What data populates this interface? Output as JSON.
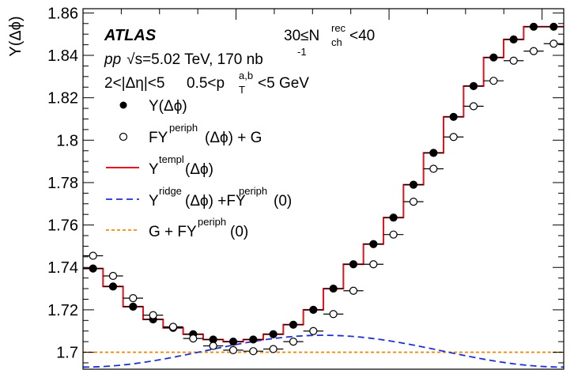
{
  "chart_data": {
    "type": "line",
    "ylabel": "Y(Δϕ)",
    "xlabel": "",
    "ylim": [
      1.692,
      1.862
    ],
    "xlim": [
      0,
      3.1416
    ],
    "yticks": [
      "1.7",
      "1.72",
      "1.74",
      "1.76",
      "1.78",
      "1.8",
      "1.82",
      "1.84",
      "1.86"
    ],
    "grid": false,
    "legend_position": "top-left",
    "annotations": {
      "experiment": "ATLAS",
      "multiplicity": {
        "lead": "30≤N",
        "sup": "rec",
        "sub": "ch",
        "tail": "<40"
      },
      "system": {
        "pp": "pp",
        "sqrt_s": "√s",
        "energy": "=5.02 TeV, 170 nb",
        "exp": "-1"
      },
      "cuts": {
        "eta": "2<|Δη|<5",
        "pt_lead": "0.5<p",
        "pt_sup": "a,b",
        "pt_sub": "T",
        "pt_tail": "<5 GeV"
      }
    },
    "legend": {
      "y": "Y(Δϕ)",
      "periph": {
        "lead": "FY",
        "sup": "periph",
        "tail": "(Δϕ) + G"
      },
      "templ": {
        "lead": "Y",
        "sup": "templ",
        "tail": "(Δϕ)"
      },
      "ridge": {
        "lead": "Y",
        "sup": "ridge",
        "mid": "(Δϕ) +FY",
        "sup2": "periph",
        "tail": "(0)"
      },
      "g": {
        "lead": "G + FY",
        "sup": "periph",
        "tail": "(0)"
      }
    },
    "colors": {
      "template": "#e8121b",
      "ridge": "#1f2fd6",
      "g_line": "#f58a0a",
      "markers": "#000000"
    },
    "bin_width": 0.1309,
    "series": [
      {
        "name": "Y(Δϕ)",
        "marker": "filled-circle",
        "x": [
          0.0655,
          0.1963,
          0.3272,
          0.4581,
          0.589,
          0.7199,
          0.8508,
          0.9817,
          1.1126,
          1.2435,
          1.3744,
          1.5053,
          1.6362,
          1.7671,
          1.898,
          2.0289,
          2.1598,
          2.2907,
          2.4216,
          2.5525,
          2.6834,
          2.8143,
          2.9452,
          3.0761
        ],
        "y": [
          1.7395,
          1.731,
          1.7215,
          1.7155,
          1.7115,
          1.7085,
          1.706,
          1.705,
          1.706,
          1.7085,
          1.713,
          1.72,
          1.73,
          1.7415,
          1.751,
          1.7635,
          1.779,
          1.794,
          1.811,
          1.8255,
          1.839,
          1.8475,
          1.8535,
          1.8535
        ]
      },
      {
        "name": "FY(Δϕ) + G",
        "marker": "open-circle",
        "x": [
          0.0655,
          0.1963,
          0.3272,
          0.4581,
          0.589,
          0.7199,
          0.8508,
          0.9817,
          1.1126,
          1.2435,
          1.3744,
          1.5053,
          1.6362,
          1.7671,
          1.898,
          2.0289,
          2.1598,
          2.2907,
          2.4216,
          2.5525,
          2.6834,
          2.8143,
          2.9452,
          3.0761
        ],
        "y": [
          1.7455,
          1.736,
          1.7255,
          1.7175,
          1.712,
          1.7065,
          1.703,
          1.701,
          1.7005,
          1.7015,
          1.705,
          1.71,
          1.718,
          1.729,
          1.7415,
          1.7555,
          1.771,
          1.7865,
          1.8015,
          1.816,
          1.828,
          1.8375,
          1.842,
          1.8455
        ]
      }
    ]
  }
}
